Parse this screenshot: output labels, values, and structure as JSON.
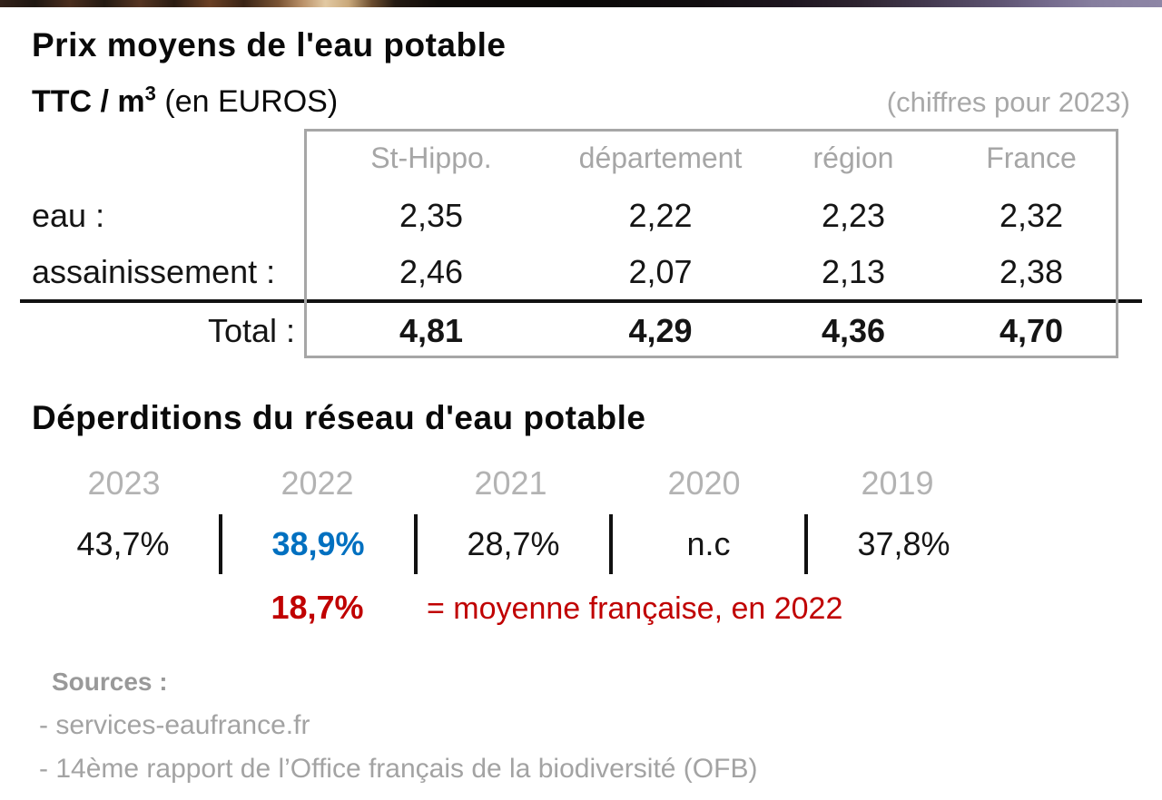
{
  "section_prices": {
    "title": "Prix moyens de l'eau potable",
    "unit_prefix": "TTC / m",
    "unit_exponent": "3",
    "unit_suffix": " (en EUROS)",
    "note": "(chiffres pour 2023)",
    "table": {
      "columns": [
        "St-Hippo.",
        "département",
        "région",
        "France"
      ],
      "rows": [
        {
          "label": "eau :",
          "values": [
            "2,35",
            "2,22",
            "2,23",
            "2,32"
          ]
        },
        {
          "label": "assainissement :",
          "values": [
            "2,46",
            "2,07",
            "2,13",
            "2,38"
          ]
        }
      ],
      "total": {
        "label": "Total :",
        "values": [
          "4,81",
          "4,29",
          "4,36",
          "4,70"
        ]
      }
    }
  },
  "section_losses": {
    "title": "Déperditions du réseau d'eau potable",
    "years": [
      "2023",
      "2022",
      "2021",
      "2020",
      "2019"
    ],
    "values": [
      "43,7%",
      "38,9%",
      "28,7%",
      "n.c",
      "37,8%"
    ],
    "highlight_year": "2022",
    "highlight_color": "#0070c0",
    "reference": {
      "value": "18,7%",
      "label": "= moyenne française, en 2022",
      "color": "#c00000"
    }
  },
  "sources": {
    "title": "Sources :",
    "items": [
      "- services-eaufrance.fr",
      "- 14ème rapport de l’Office français de la biodiversité (OFB)"
    ]
  }
}
